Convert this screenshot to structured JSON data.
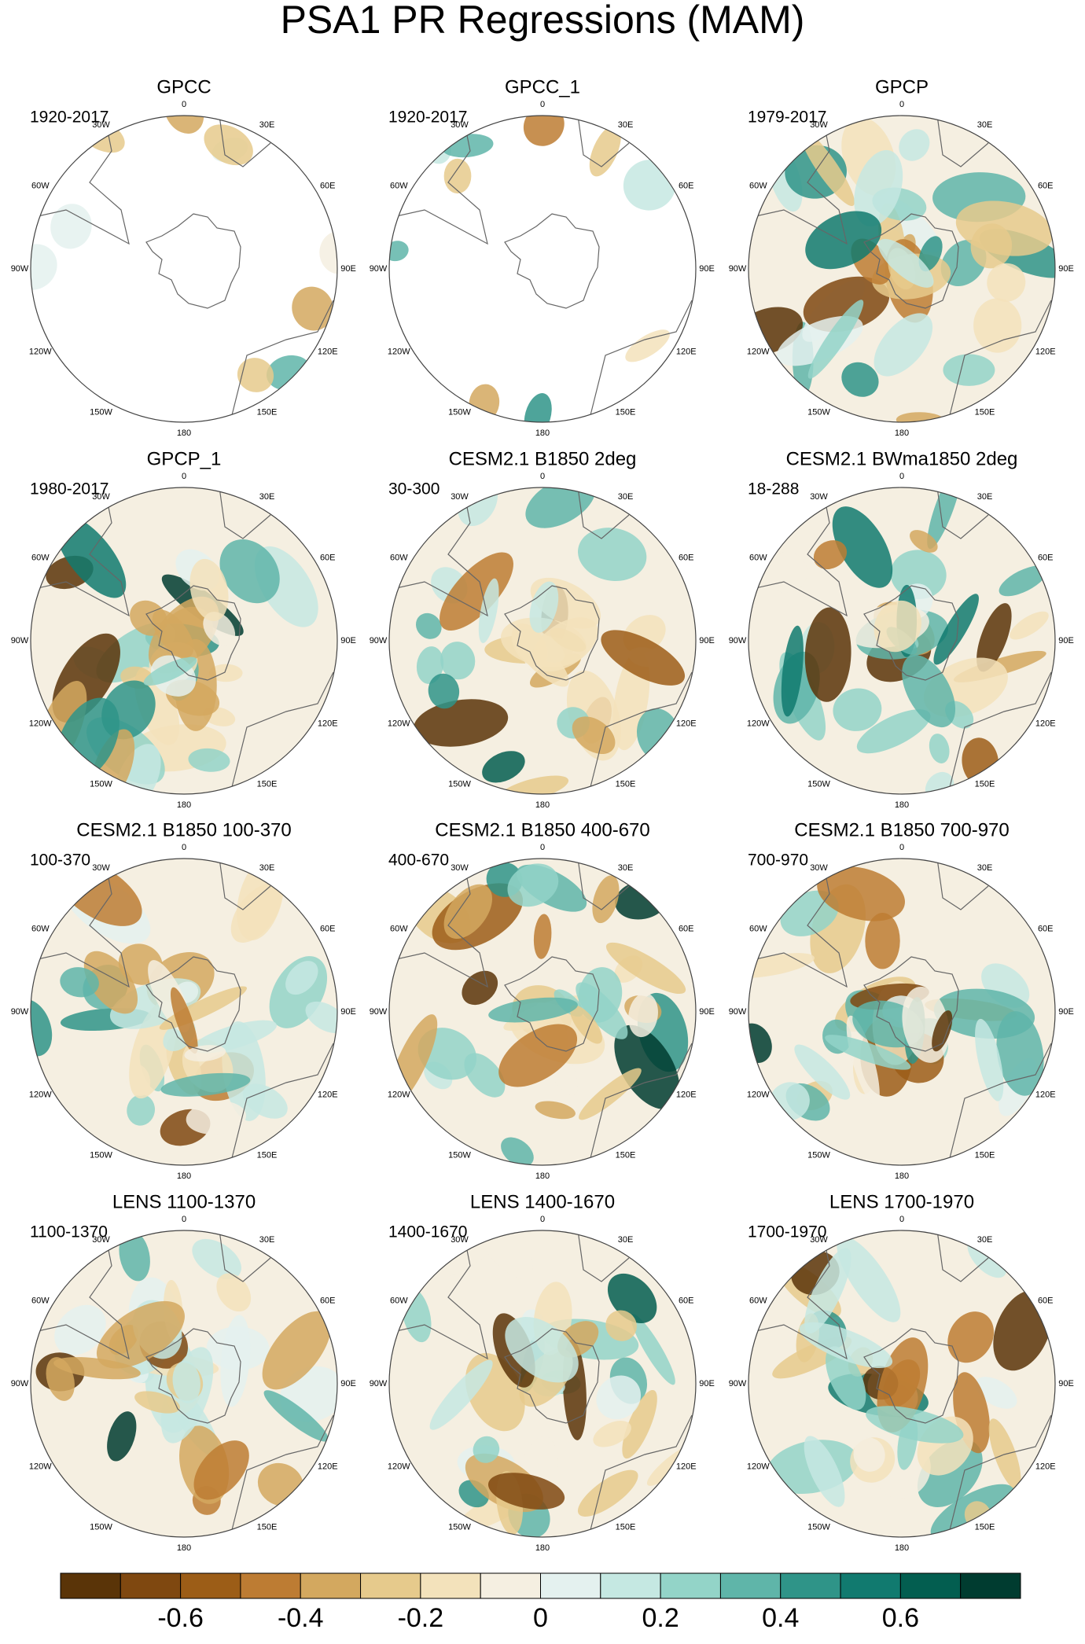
{
  "title": "PSA1 PR Regressions (MAM)",
  "panels": [
    {
      "title": "GPCC",
      "period": "1920-2017"
    },
    {
      "title": "GPCC_1",
      "period": "1920-2017"
    },
    {
      "title": "GPCP",
      "period": "1979-2017"
    },
    {
      "title": "GPCP_1",
      "period": "1980-2017"
    },
    {
      "title": "CESM2.1 B1850 2deg",
      "period": "30-300"
    },
    {
      "title": "CESM2.1 BWma1850 2deg",
      "period": "18-288"
    },
    {
      "title": "CESM2.1 B1850 100-370",
      "period": "100-370"
    },
    {
      "title": "CESM2.1 B1850 400-670",
      "period": "400-670"
    },
    {
      "title": "CESM2.1 B1850 700-970",
      "period": "700-970"
    },
    {
      "title": "LENS 1100-1370",
      "period": "1100-1370"
    },
    {
      "title": "LENS 1400-1670",
      "period": "1400-1670"
    },
    {
      "title": "LENS 1700-1970",
      "period": "1700-1970"
    }
  ],
  "longitude_labels": [
    "0",
    "30E",
    "60E",
    "90E",
    "120E",
    "150E",
    "180",
    "150W",
    "120W",
    "90W",
    "60W",
    "30W"
  ],
  "colorbar": {
    "colors": [
      "#5a3408",
      "#7f4810",
      "#9c5d17",
      "#bd7c33",
      "#d3a85f",
      "#e6ca8c",
      "#f3e2bb",
      "#f5efe1",
      "#e4f1ef",
      "#c5e8e2",
      "#93d4c8",
      "#5fb5a9",
      "#2f9488",
      "#117a6f",
      "#035e50",
      "#003c30"
    ],
    "lim": [
      -0.8,
      0.8
    ],
    "ticks": [
      -0.6,
      -0.4,
      -0.2,
      0,
      0.2,
      0.4,
      0.6
    ]
  }
}
